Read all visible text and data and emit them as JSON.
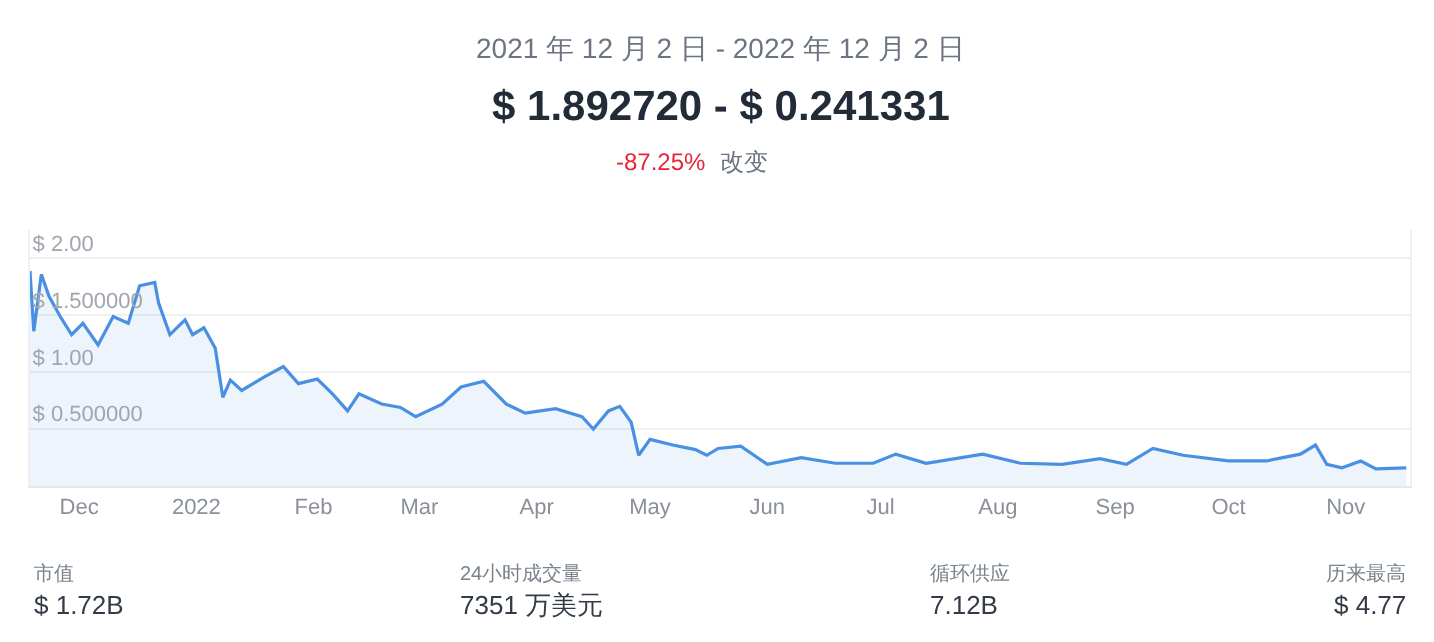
{
  "chart_data": {
    "type": "area",
    "subtitle": "2021 年 12 月 2 日 - 2022 年 12 月 2 日",
    "title": "$ 1.892720 - $ 0.241331",
    "annotations": [
      "-87.25%",
      "改变",
      "市值",
      "$ 1.72B",
      "24小时成交量",
      "7351 万美元",
      "循环供应",
      "7.12B",
      "历来最高",
      "$ 4.77"
    ],
    "x": [
      "2021-12-02",
      "2021-12-03",
      "2021-12-05",
      "2021-12-07",
      "2021-12-10",
      "2021-12-13",
      "2021-12-16",
      "2021-12-20",
      "2021-12-24",
      "2021-12-28",
      "2021-12-31",
      "2022-01-04",
      "2022-01-05",
      "2022-01-08",
      "2022-01-12",
      "2022-01-14",
      "2022-01-17",
      "2022-01-20",
      "2022-01-22",
      "2022-01-24",
      "2022-01-27",
      "2022-02-02",
      "2022-02-07",
      "2022-02-11",
      "2022-02-16",
      "2022-02-20",
      "2022-02-24",
      "2022-02-27",
      "2022-03-05",
      "2022-03-10",
      "2022-03-14",
      "2022-03-21",
      "2022-03-26",
      "2022-04-01",
      "2022-04-07",
      "2022-04-12",
      "2022-04-20",
      "2022-04-27",
      "2022-04-30",
      "2022-05-04",
      "2022-05-07",
      "2022-05-10",
      "2022-05-12",
      "2022-05-15",
      "2022-05-21",
      "2022-05-27",
      "2022-05-30",
      "2022-06-02",
      "2022-06-08",
      "2022-06-15",
      "2022-06-24",
      "2022-07-03",
      "2022-07-13",
      "2022-07-19",
      "2022-07-27",
      "2022-08-11",
      "2022-08-21",
      "2022-09-01",
      "2022-09-11",
      "2022-09-18",
      "2022-09-25",
      "2022-10-03",
      "2022-10-15",
      "2022-10-25",
      "2022-11-03",
      "2022-11-07",
      "2022-11-10",
      "2022-11-14",
      "2022-11-19",
      "2022-11-23",
      "2022-12-01"
    ],
    "series": [
      {
        "color": "#4a90e2",
        "values": [
          1.89,
          1.36,
          1.86,
          1.67,
          1.49,
          1.33,
          1.43,
          1.24,
          1.49,
          1.43,
          1.76,
          1.79,
          1.61,
          1.33,
          1.46,
          1.33,
          1.39,
          1.21,
          0.78,
          0.93,
          0.84,
          0.96,
          1.05,
          0.9,
          0.94,
          0.81,
          0.66,
          0.81,
          0.72,
          0.69,
          0.61,
          0.72,
          0.87,
          0.92,
          0.72,
          0.64,
          0.68,
          0.61,
          0.5,
          0.66,
          0.7,
          0.56,
          0.27,
          0.41,
          0.36,
          0.32,
          0.27,
          0.33,
          0.35,
          0.19,
          0.25,
          0.2,
          0.2,
          0.28,
          0.2,
          0.28,
          0.2,
          0.19,
          0.24,
          0.19,
          0.33,
          0.27,
          0.22,
          0.22,
          0.28,
          0.36,
          0.19,
          0.16,
          0.22,
          0.15,
          0.16
        ]
      }
    ],
    "xlim": [
      "2021-12-02",
      "2022-12-02"
    ],
    "xticks": [
      {
        "value": "2021-12-15",
        "label": "Dec"
      },
      {
        "value": "2022-01-15",
        "label": "2022"
      },
      {
        "value": "2022-02-15",
        "label": "Feb"
      },
      {
        "value": "2022-03-15",
        "label": "Mar"
      },
      {
        "value": "2022-04-15",
        "label": "Apr"
      },
      {
        "value": "2022-05-15",
        "label": "May"
      },
      {
        "value": "2022-06-15",
        "label": "Jun"
      },
      {
        "value": "2022-07-15",
        "label": "Jul"
      },
      {
        "value": "2022-08-15",
        "label": "Aug"
      },
      {
        "value": "2022-09-15",
        "label": "Sep"
      },
      {
        "value": "2022-10-15",
        "label": "Oct"
      },
      {
        "value": "2022-11-15",
        "label": "Nov"
      }
    ],
    "ylim": [
      0,
      2.25
    ],
    "yticks": [
      {
        "value": 0.5,
        "label": "$ 0.500000"
      },
      {
        "value": 1,
        "label": "$ 1.00"
      },
      {
        "value": 1.5,
        "label": "$ 1.500000"
      },
      {
        "value": 2,
        "label": "$ 2.00"
      }
    ],
    "grid": "y",
    "marker": "none",
    "line_style": "solid"
  }
}
